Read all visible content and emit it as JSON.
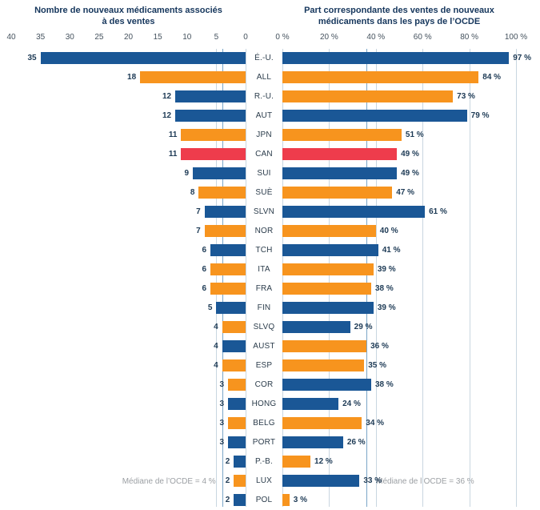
{
  "chart_data": {
    "type": "bar",
    "orientation": "horizontal-paired",
    "left": {
      "title": "Nombre de nouveaux médicaments associés à des ventes",
      "max": 40,
      "ticks": [
        {
          "value": 40,
          "label": "40"
        },
        {
          "value": 35,
          "label": "35"
        },
        {
          "value": 30,
          "label": "30"
        },
        {
          "value": 25,
          "label": "25"
        },
        {
          "value": 20,
          "label": "20"
        },
        {
          "value": 15,
          "label": "15"
        },
        {
          "value": 10,
          "label": "10"
        },
        {
          "value": 5,
          "label": "5"
        },
        {
          "value": 0,
          "label": "0"
        }
      ],
      "gridline_values": [
        5,
        0
      ],
      "median": {
        "value": 4,
        "label": "Médiane de l’OCDE = 4 %"
      }
    },
    "right": {
      "title": "Part correspondante des ventes de nouveaux médicaments dans les pays de l’OCDE",
      "max": 100,
      "ticks": [
        {
          "value": 0,
          "label": "0 %"
        },
        {
          "value": 20,
          "label": "20 %"
        },
        {
          "value": 40,
          "label": "40 %"
        },
        {
          "value": 60,
          "label": "60 %"
        },
        {
          "value": 80,
          "label": "80 %"
        },
        {
          "value": 100,
          "label": "100 %"
        }
      ],
      "gridline_values": [
        0,
        20,
        40,
        60,
        80,
        100
      ],
      "median": {
        "value": 36,
        "label": "Médiane de l’OCDE = 36 %"
      }
    },
    "colors": {
      "blue": "#1a5796",
      "orange": "#f7941e",
      "red": "#ee3c4c"
    },
    "rows": [
      {
        "country": "É.-U.",
        "count": 35,
        "count_label": "35",
        "count_color": "blue",
        "share": 97,
        "share_label": "97 %",
        "share_color": "blue"
      },
      {
        "country": "ALL",
        "count": 18,
        "count_label": "18",
        "count_color": "orange",
        "share": 84,
        "share_label": "84 %",
        "share_color": "orange"
      },
      {
        "country": "R.-U.",
        "count": 12,
        "count_label": "12",
        "count_color": "blue",
        "share": 73,
        "share_label": "73 %",
        "share_color": "orange"
      },
      {
        "country": "AUT",
        "count": 12,
        "count_label": "12",
        "count_color": "blue",
        "share": 79,
        "share_label": "79 %",
        "share_color": "blue"
      },
      {
        "country": "JPN",
        "count": 11,
        "count_label": "11",
        "count_color": "orange",
        "share": 51,
        "share_label": "51 %",
        "share_color": "orange"
      },
      {
        "country": "CAN",
        "count": 11,
        "count_label": "11",
        "count_color": "red",
        "share": 49,
        "share_label": "49 %",
        "share_color": "red"
      },
      {
        "country": "SUI",
        "count": 9,
        "count_label": "9",
        "count_color": "blue",
        "share": 49,
        "share_label": "49 %",
        "share_color": "blue"
      },
      {
        "country": "SUÈ",
        "count": 8,
        "count_label": "8",
        "count_color": "orange",
        "share": 47,
        "share_label": "47 %",
        "share_color": "orange"
      },
      {
        "country": "SLVN",
        "count": 7,
        "count_label": "7",
        "count_color": "blue",
        "share": 61,
        "share_label": "61 %",
        "share_color": "blue"
      },
      {
        "country": "NOR",
        "count": 7,
        "count_label": "7",
        "count_color": "orange",
        "share": 40,
        "share_label": "40 %",
        "share_color": "orange"
      },
      {
        "country": "TCH",
        "count": 6,
        "count_label": "6",
        "count_color": "blue",
        "share": 41,
        "share_label": "41 %",
        "share_color": "blue"
      },
      {
        "country": "ITA",
        "count": 6,
        "count_label": "6",
        "count_color": "orange",
        "share": 39,
        "share_label": "39 %",
        "share_color": "orange"
      },
      {
        "country": "FRA",
        "count": 6,
        "count_label": "6",
        "count_color": "orange",
        "share": 38,
        "share_label": "38 %",
        "share_color": "orange"
      },
      {
        "country": "FIN",
        "count": 5,
        "count_label": "5",
        "count_color": "blue",
        "share": 39,
        "share_label": "39 %",
        "share_color": "blue"
      },
      {
        "country": "SLVQ",
        "count": 4,
        "count_label": "4",
        "count_color": "orange",
        "share": 29,
        "share_label": "29 %",
        "share_color": "blue"
      },
      {
        "country": "AUST",
        "count": 4,
        "count_label": "4",
        "count_color": "blue",
        "share": 36,
        "share_label": "36 %",
        "share_color": "orange"
      },
      {
        "country": "ESP",
        "count": 4,
        "count_label": "4",
        "count_color": "orange",
        "share": 35,
        "share_label": "35 %",
        "share_color": "orange"
      },
      {
        "country": "COR",
        "count": 3,
        "count_label": "3",
        "count_color": "orange",
        "share": 38,
        "share_label": "38 %",
        "share_color": "blue"
      },
      {
        "country": "HONG",
        "count": 3,
        "count_label": "3",
        "count_color": "blue",
        "share": 24,
        "share_label": "24 %",
        "share_color": "blue"
      },
      {
        "country": "BELG",
        "count": 3,
        "count_label": "3",
        "count_color": "orange",
        "share": 34,
        "share_label": "34 %",
        "share_color": "orange"
      },
      {
        "country": "PORT",
        "count": 3,
        "count_label": "3",
        "count_color": "blue",
        "share": 26,
        "share_label": "26 %",
        "share_color": "blue"
      },
      {
        "country": "P.-B.",
        "count": 2,
        "count_label": "2",
        "count_color": "blue",
        "share": 12,
        "share_label": "12 %",
        "share_color": "orange"
      },
      {
        "country": "LUX",
        "count": 2,
        "count_label": "2",
        "count_color": "orange",
        "share": 33,
        "share_label": "33 %",
        "share_color": "blue"
      },
      {
        "country": "POL",
        "count": 2,
        "count_label": "2",
        "count_color": "blue",
        "share": 3,
        "share_label": "3 %",
        "share_color": "orange"
      }
    ]
  }
}
